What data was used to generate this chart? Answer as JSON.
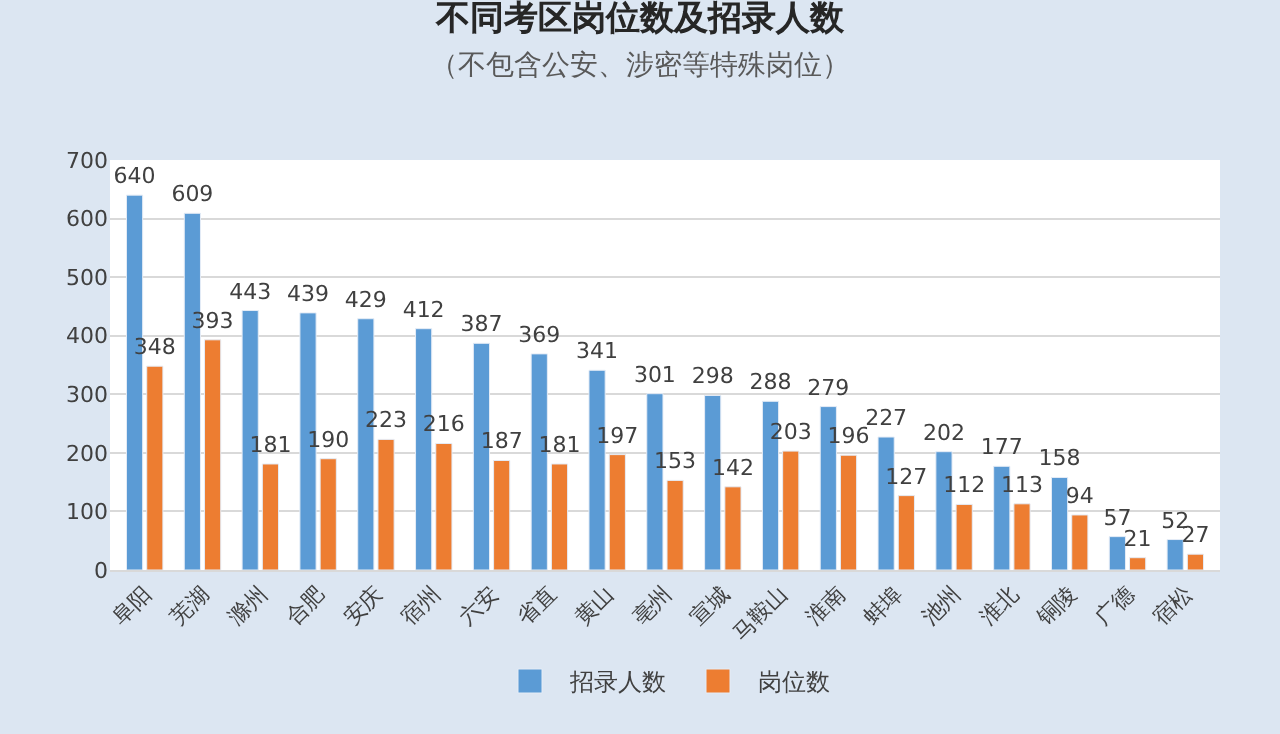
{
  "chart_data": {
    "type": "bar",
    "title": "不同考区岗位数及招录人数",
    "subtitle": "（不包含公安、涉密等特殊岗位）",
    "categories": [
      "阜阳",
      "芜湖",
      "滁州",
      "合肥",
      "安庆",
      "宿州",
      "六安",
      "省直",
      "黄山",
      "亳州",
      "宣城",
      "马鞍山",
      "淮南",
      "蚌埠",
      "池州",
      "淮北",
      "铜陵",
      "广德",
      "宿松"
    ],
    "series": [
      {
        "name": "招录人数",
        "color": "#5b9bd5",
        "values": [
          640,
          609,
          443,
          439,
          429,
          412,
          387,
          369,
          341,
          301,
          298,
          288,
          279,
          227,
          202,
          177,
          158,
          57,
          52
        ]
      },
      {
        "name": "岗位数",
        "color": "#ed7d31",
        "values": [
          348,
          393,
          181,
          190,
          223,
          216,
          187,
          181,
          197,
          153,
          142,
          203,
          196,
          127,
          112,
          113,
          94,
          21,
          27
        ]
      }
    ],
    "ylim": [
      0,
      700
    ],
    "yticks": [
      0,
      100,
      200,
      300,
      400,
      500,
      600,
      700
    ],
    "grid": "y",
    "legend": "bottom",
    "data_labels": true
  }
}
